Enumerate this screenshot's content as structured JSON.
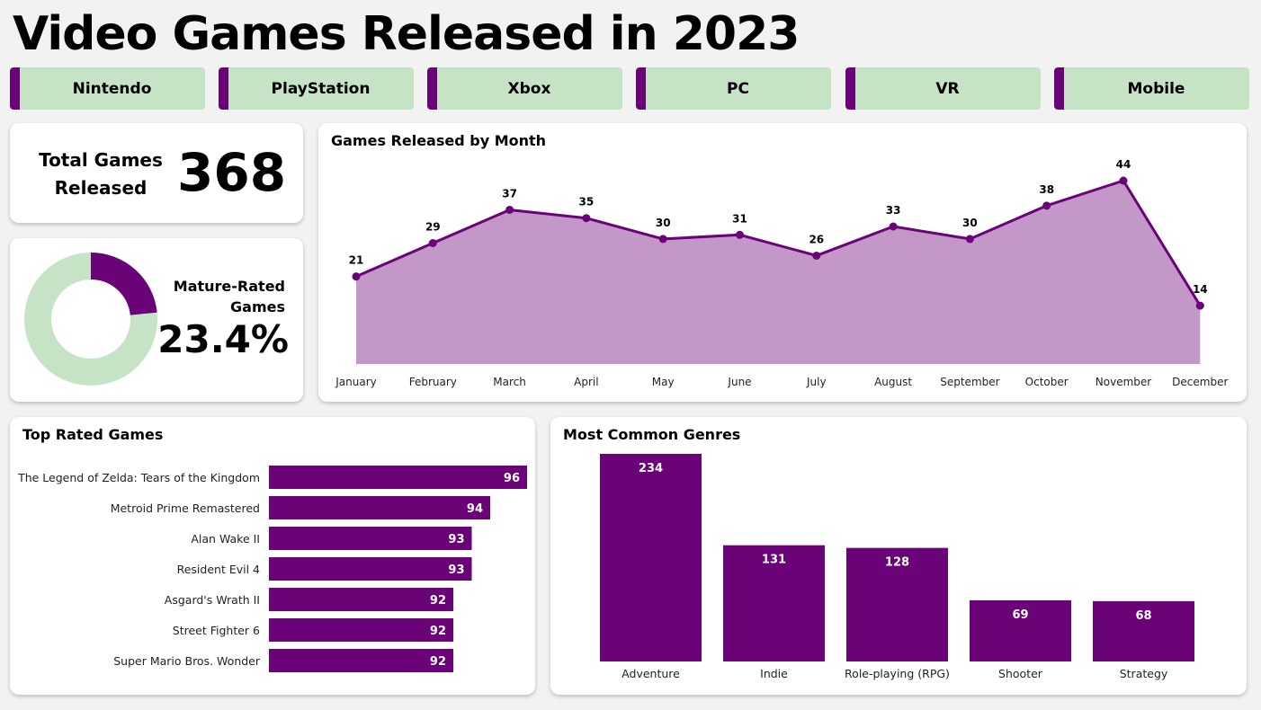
{
  "title": "Video Games Released in 2023",
  "platforms": [
    {
      "label": "Nintendo"
    },
    {
      "label": "PlayStation"
    },
    {
      "label": "Xbox"
    },
    {
      "label": "PC"
    },
    {
      "label": "VR"
    },
    {
      "label": "Mobile"
    }
  ],
  "kpi_total": {
    "label": "Total Games Released",
    "value": "368"
  },
  "kpi_mature": {
    "label": "Mature-Rated Games",
    "value": "23.4%",
    "fraction": 0.234
  },
  "colors": {
    "accent": "#6a0378",
    "area_fill": "#c397c8",
    "tile_bg": "#c6e4c5",
    "page_bg": "#f2f2f2"
  },
  "chart_data": [
    {
      "type": "area",
      "title": "Games Released by Month",
      "categories": [
        "January",
        "February",
        "March",
        "April",
        "May",
        "June",
        "July",
        "August",
        "September",
        "October",
        "November",
        "December"
      ],
      "values": [
        21,
        29,
        37,
        35,
        30,
        31,
        26,
        33,
        30,
        38,
        44,
        14
      ]
    },
    {
      "type": "bar",
      "orientation": "horizontal",
      "title": "Top Rated Games",
      "categories": [
        "The Legend of Zelda: Tears of the Kingdom",
        "Metroid Prime Remastered",
        "Alan Wake II",
        "Resident Evil 4",
        "Asgard's Wrath II",
        "Street Fighter 6",
        "Super Mario Bros. Wonder"
      ],
      "values": [
        96,
        94,
        93,
        93,
        92,
        92,
        92
      ]
    },
    {
      "type": "bar",
      "title": "Most Common Genres",
      "categories": [
        "Adventure",
        "Indie",
        "Role-playing (RPG)",
        "Shooter",
        "Strategy"
      ],
      "values": [
        234,
        131,
        128,
        69,
        68
      ]
    },
    {
      "type": "pie",
      "title": "Mature-Rated Games",
      "values": [
        23.4,
        76.6
      ]
    }
  ]
}
